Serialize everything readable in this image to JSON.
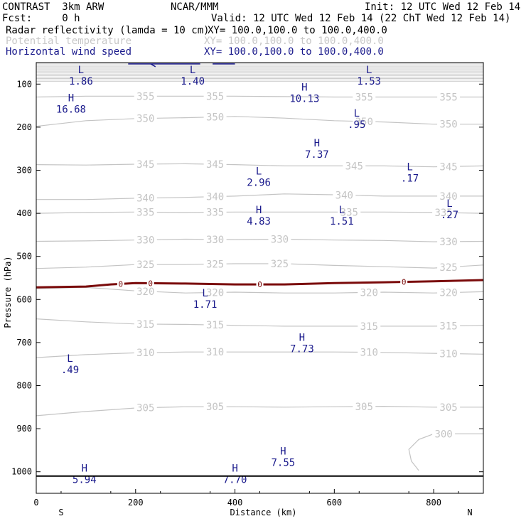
{
  "header": {
    "model": "CONTRAST  3km ARW",
    "center": "NCAR/MMM",
    "init": "Init: 12 UTC Wed 12 Feb 14",
    "fcst": "Fcst:     0 h",
    "valid": "Valid: 12 UTC Wed 12 Feb 14 (22 ChT Wed 12 Feb 14)",
    "fields": [
      {
        "name": "Radar reflectivity (lamda = 10 cm)",
        "xy": "XY= 100.0,100.0 to 100.0,400.0",
        "color": "#000000"
      },
      {
        "name": "Potential temperature",
        "xy": "XY= 100.0,100.0 to 100.0,400.0",
        "color": "#c8c8c8"
      },
      {
        "name": "Horizontal wind speed",
        "xy": "XY= 100.0,100.0 to 100.0,400.0",
        "color": "#1a1a8c"
      }
    ]
  },
  "chart_data": {
    "type": "cross-section",
    "xlabel": "Distance (km)",
    "ylabel": "Pressure (hPa)",
    "xlim": [
      0,
      900
    ],
    "ylim": [
      1050,
      50
    ],
    "x_ticks": [
      0,
      200,
      400,
      600,
      800
    ],
    "y_ticks": [
      100,
      200,
      300,
      400,
      500,
      600,
      700,
      800,
      900,
      1000
    ],
    "x_end_labels": {
      "left": "S",
      "right": "N"
    },
    "surface_pressure": 1010,
    "theta_isentropes": [
      {
        "value": 305,
        "points": [
          [
            0,
            870
          ],
          [
            100,
            860
          ],
          [
            200,
            852
          ],
          [
            300,
            849
          ],
          [
            400,
            849
          ],
          [
            500,
            850
          ],
          [
            600,
            849
          ],
          [
            700,
            848
          ],
          [
            800,
            850
          ],
          [
            900,
            850
          ]
        ],
        "label_x": [
          220,
          360,
          660,
          830
        ]
      },
      {
        "value": 310,
        "points": [
          [
            0,
            735
          ],
          [
            100,
            728
          ],
          [
            200,
            724
          ],
          [
            300,
            722
          ],
          [
            400,
            722
          ],
          [
            500,
            722
          ],
          [
            600,
            722
          ],
          [
            700,
            723
          ],
          [
            800,
            725
          ],
          [
            900,
            727
          ]
        ],
        "label_x": [
          220,
          360,
          670,
          830
        ]
      },
      {
        "value": 315,
        "points": [
          [
            0,
            645
          ],
          [
            100,
            652
          ],
          [
            200,
            657
          ],
          [
            300,
            658
          ],
          [
            400,
            660
          ],
          [
            500,
            662
          ],
          [
            600,
            662
          ],
          [
            700,
            662
          ],
          [
            800,
            662
          ],
          [
            900,
            660
          ]
        ],
        "label_x": [
          220,
          360,
          670,
          830
        ]
      },
      {
        "value": 320,
        "points": [
          [
            0,
            575
          ],
          [
            100,
            572
          ],
          [
            200,
            580
          ],
          [
            300,
            585
          ],
          [
            400,
            583
          ],
          [
            500,
            585
          ],
          [
            600,
            585
          ],
          [
            700,
            583
          ],
          [
            800,
            585
          ],
          [
            900,
            582
          ]
        ],
        "label_x": [
          220,
          360,
          670,
          830
        ]
      },
      {
        "value": 325,
        "points": [
          [
            0,
            528
          ],
          [
            100,
            525
          ],
          [
            200,
            519
          ],
          [
            300,
            519
          ],
          [
            400,
            517
          ],
          [
            500,
            517
          ],
          [
            600,
            521
          ],
          [
            700,
            524
          ],
          [
            800,
            527
          ],
          [
            900,
            520
          ]
        ],
        "label_x": [
          220,
          360,
          490,
          830
        ]
      },
      {
        "value": 330,
        "points": [
          [
            0,
            465
          ],
          [
            100,
            464
          ],
          [
            200,
            462
          ],
          [
            300,
            460
          ],
          [
            400,
            461
          ],
          [
            500,
            460
          ],
          [
            600,
            462
          ],
          [
            700,
            463
          ],
          [
            800,
            466
          ],
          [
            900,
            465
          ]
        ],
        "label_x": [
          220,
          360,
          490,
          830
        ]
      },
      {
        "value": 335,
        "points": [
          [
            0,
            400
          ],
          [
            100,
            398
          ],
          [
            200,
            397
          ],
          [
            300,
            398
          ],
          [
            400,
            397
          ],
          [
            500,
            397
          ],
          [
            600,
            397
          ],
          [
            700,
            397
          ],
          [
            800,
            398
          ],
          [
            900,
            400
          ]
        ],
        "label_x": [
          220,
          360,
          630,
          820
        ]
      },
      {
        "value": 340,
        "points": [
          [
            0,
            368
          ],
          [
            100,
            368
          ],
          [
            200,
            365
          ],
          [
            300,
            363
          ],
          [
            400,
            360
          ],
          [
            500,
            355
          ],
          [
            600,
            357
          ],
          [
            700,
            360
          ],
          [
            800,
            360
          ],
          [
            900,
            360
          ]
        ],
        "label_x": [
          220,
          360,
          620,
          830
        ]
      },
      {
        "value": 345,
        "points": [
          [
            0,
            287
          ],
          [
            100,
            288
          ],
          [
            200,
            286
          ],
          [
            300,
            285
          ],
          [
            400,
            287
          ],
          [
            500,
            290
          ],
          [
            600,
            290
          ],
          [
            700,
            290
          ],
          [
            800,
            292
          ],
          [
            900,
            290
          ]
        ],
        "label_x": [
          220,
          360,
          640,
          830
        ]
      },
      {
        "value": 350,
        "points": [
          [
            0,
            198
          ],
          [
            100,
            185
          ],
          [
            200,
            180
          ],
          [
            300,
            178
          ],
          [
            400,
            175
          ],
          [
            500,
            179
          ],
          [
            600,
            185
          ],
          [
            700,
            188
          ],
          [
            800,
            193
          ],
          [
            900,
            193
          ]
        ],
        "label_x": [
          220,
          360,
          660,
          830
        ]
      },
      {
        "value": 355,
        "points": [
          [
            0,
            130
          ],
          [
            100,
            128
          ],
          [
            200,
            128
          ],
          [
            300,
            128
          ],
          [
            400,
            128
          ],
          [
            500,
            129
          ],
          [
            600,
            130
          ],
          [
            700,
            130
          ],
          [
            800,
            130
          ],
          [
            900,
            130
          ]
        ],
        "label_x": [
          220,
          360,
          660,
          830
        ]
      },
      {
        "value": 300,
        "points": [
          [
            900,
            912
          ],
          [
            800,
            912
          ],
          [
            770,
            925
          ],
          [
            750,
            948
          ],
          [
            755,
            975
          ],
          [
            770,
            997
          ]
        ],
        "label_x": [
          820
        ]
      }
    ],
    "reflectivity_contour": {
      "value": "0",
      "points": [
        [
          0,
          572
        ],
        [
          100,
          570
        ],
        [
          150,
          565
        ],
        [
          200,
          562
        ],
        [
          300,
          563
        ],
        [
          400,
          565
        ],
        [
          500,
          565
        ],
        [
          600,
          562
        ],
        [
          700,
          560
        ],
        [
          800,
          558
        ],
        [
          900,
          555
        ]
      ],
      "label_x": [
        170,
        230,
        450,
        740
      ]
    },
    "wind_extrema": [
      {
        "type": "L",
        "value": "1.86",
        "x": 90,
        "p": 75
      },
      {
        "type": "L",
        "value": "1.40",
        "x": 315,
        "p": 75
      },
      {
        "type": "L",
        "value": "1.53",
        "x": 670,
        "p": 75
      },
      {
        "type": "H",
        "value": "16.68",
        "x": 70,
        "p": 140
      },
      {
        "type": "H",
        "value": "10.13",
        "x": 540,
        "p": 115
      },
      {
        "type": "L",
        "value": ".95",
        "x": 645,
        "p": 175
      },
      {
        "type": "H",
        "value": "7.37",
        "x": 565,
        "p": 245
      },
      {
        "type": "L",
        "value": ".17",
        "x": 752,
        "p": 300
      },
      {
        "type": "L",
        "value": "2.96",
        "x": 448,
        "p": 310
      },
      {
        "type": "L",
        "value": ".27",
        "x": 832,
        "p": 385
      },
      {
        "type": "H",
        "value": "4.83",
        "x": 448,
        "p": 400
      },
      {
        "type": "L",
        "value": "1.51",
        "x": 615,
        "p": 400
      },
      {
        "type": "L",
        "value": "1.71",
        "x": 340,
        "p": 593
      },
      {
        "type": "H",
        "value": "7.73",
        "x": 535,
        "p": 696
      },
      {
        "type": "L",
        "value": ".49",
        "x": 68,
        "p": 745
      },
      {
        "type": "H",
        "value": "7.55",
        "x": 497,
        "p": 960
      },
      {
        "type": "H",
        "value": "5.94",
        "x": 97,
        "p": 1000
      },
      {
        "type": "H",
        "value": "7.70",
        "x": 400,
        "p": 1000
      }
    ]
  }
}
